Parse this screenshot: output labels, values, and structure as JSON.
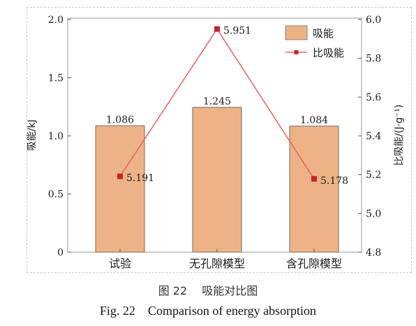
{
  "chart_data": {
    "type": "bar",
    "categories": [
      "试验",
      "无孔隙模型",
      "含孔隙模型"
    ],
    "series": [
      {
        "name": "吸能",
        "type": "bar",
        "axis": "left",
        "values": [
          1.086,
          1.245,
          1.084
        ],
        "color": "#EDB386",
        "edge": "#7a6a5c"
      },
      {
        "name": "比吸能",
        "type": "line",
        "axis": "right",
        "values": [
          5.191,
          5.951,
          5.178
        ],
        "color": "#E86060",
        "marker": "#C8222A"
      }
    ],
    "bar_labels": [
      "1.086",
      "1.245",
      "1.084"
    ],
    "line_labels": [
      "5.191",
      "5.951",
      "5.178"
    ],
    "ylabel_left": "吸能/kJ",
    "ylabel_right": "比吸能/(J·g⁻¹)",
    "ylim_left": [
      0,
      2.0
    ],
    "ylim_right": [
      4.8,
      6.0
    ],
    "yticks_left": [
      "0",
      "0.5",
      "1.0",
      "1.5",
      "2.0"
    ],
    "yticks_right": [
      "4.8",
      "5.0",
      "5.2",
      "5.4",
      "5.6",
      "5.8",
      "6.0"
    ],
    "legend_position": "top-right",
    "grid": false
  },
  "caption": {
    "zh": "图 22　 吸能对比图",
    "en": "Fig. 22　Comparison of energy absorption"
  }
}
